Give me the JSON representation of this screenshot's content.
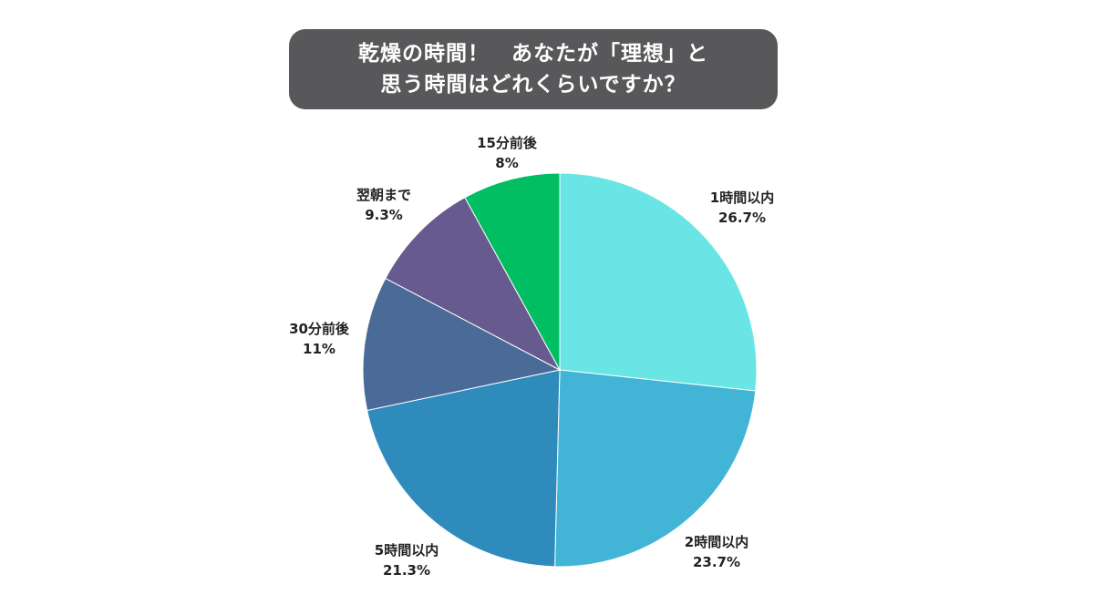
{
  "title": {
    "line1": "乾燥の時間！　あなたが「理想」と",
    "line2": "思う時間はどれくらいですか？",
    "background_color": "#58585a"
  },
  "chart_data": {
    "type": "pie",
    "start": "12 o'clock, clockwise",
    "slices": [
      {
        "label": "1時間以内",
        "value": 26.7,
        "value_label": "26.7%",
        "color": "#6ae5e6"
      },
      {
        "label": "2時間以内",
        "value": 23.7,
        "value_label": "23.7%",
        "color": "#42b5d6"
      },
      {
        "label": "5時間以内",
        "value": 21.3,
        "value_label": "21.3%",
        "color": "#2e8bbb"
      },
      {
        "label": "30分前後",
        "value": 11,
        "value_label": "11%",
        "color": "#4a6a98"
      },
      {
        "label": "翌朝まで",
        "value": 9.3,
        "value_label": "9.3%",
        "color": "#665a8e"
      },
      {
        "label": "15分前後",
        "value": 8,
        "value_label": "8%",
        "color": "#02be62"
      }
    ]
  }
}
